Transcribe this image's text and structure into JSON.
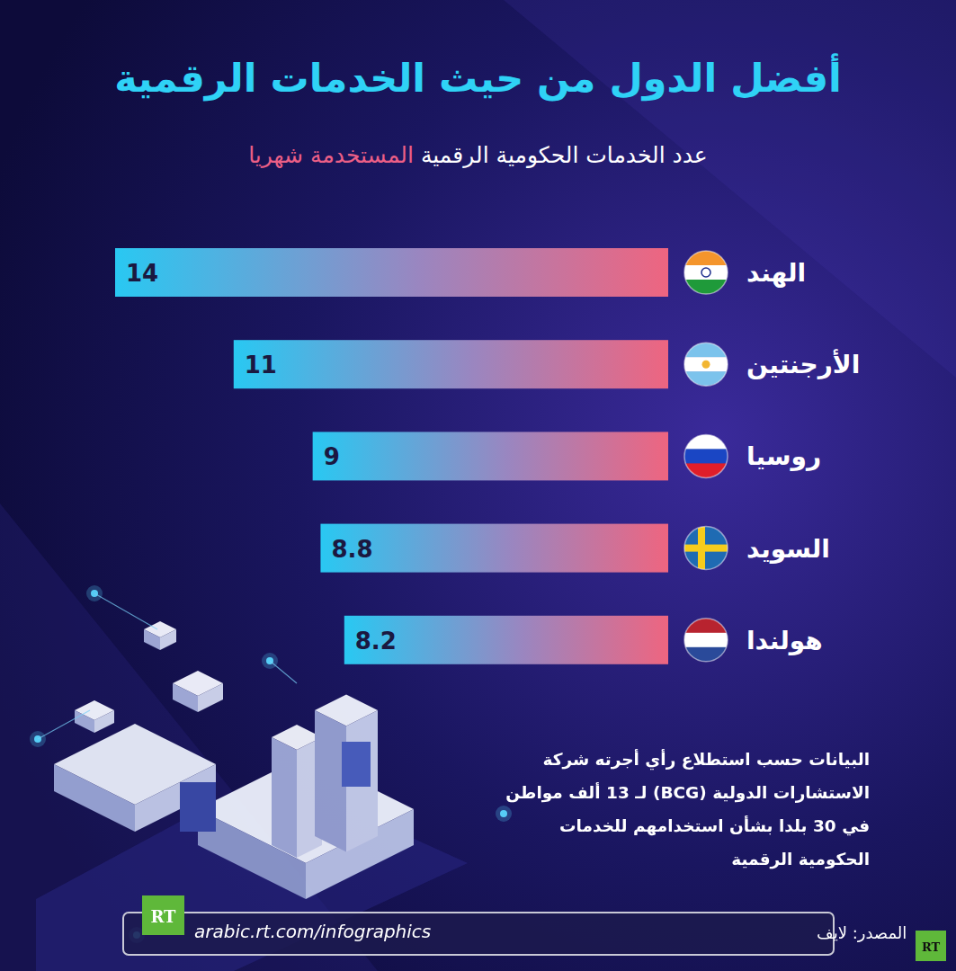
{
  "chart_data": {
    "type": "bar",
    "orientation": "horizontal",
    "title": "أفضل الدول من حيث الخدمات الرقمية",
    "subtitle": [
      "عدد الخدمات الحكومية الرقمية",
      "المستخدمة شهريا"
    ],
    "categories": [
      "الهند",
      "الأرجنتين",
      "روسيا",
      "السويد",
      "هولندا"
    ],
    "values": [
      14,
      11,
      9,
      8.8,
      8.2
    ],
    "color": "#29c8f2",
    "data_labels": true,
    "tick_labels": "y",
    "grid": false,
    "annotations": {
      "note": [
        "البيانات حسب استطلاع رأي أجرته شركة",
        "الاستشارات الدولية (BCG) لـ 13 ألف مواطن",
        "في 30 بلدا بشأن استخدامهم للخدمات",
        "الحكومية الرقمية"
      ],
      "url": "arabic.rt.com/infographics",
      "source": "المصدر: لايف",
      "logo": "RT"
    }
  }
}
